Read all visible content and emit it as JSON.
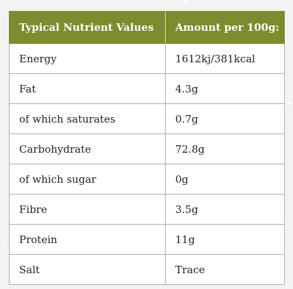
{
  "table": {
    "headers": [
      "Typical Nutrient Values",
      "Amount per 100g:"
    ],
    "rows": [
      [
        "Energy",
        "1612kj/381kcal"
      ],
      [
        "Fat",
        "4.3g"
      ],
      [
        "of which saturates",
        "0.7g"
      ],
      [
        "Carbohydrate",
        "72.8g"
      ],
      [
        "of which sugar",
        "0g"
      ],
      [
        "Fibre",
        "3.5g"
      ],
      [
        "Protein",
        "11g"
      ],
      [
        "Salt",
        "Trace"
      ]
    ]
  },
  "colors": {
    "header_background": "#7c8c2e",
    "header_text": "#ffffff",
    "border": "#a9a9a9",
    "page_background": "#f3f3f1"
  }
}
